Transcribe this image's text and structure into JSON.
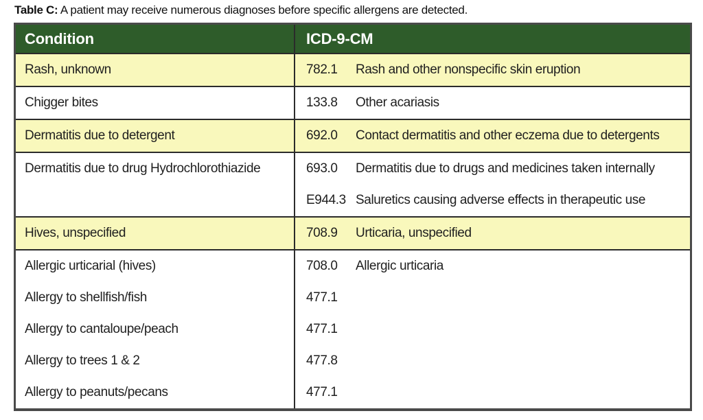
{
  "caption": {
    "label": "Table C:",
    "text": "A patient may receive numerous diagnoses before specific allergens are detected."
  },
  "table": {
    "headers": {
      "condition": "Condition",
      "code": "ICD-9-CM"
    },
    "colors": {
      "header_bg": "#2e5c2a",
      "header_text": "#ffffff",
      "row_yellow": "#f9f8bc",
      "row_white": "#ffffff",
      "border": "#2b2b2b",
      "outer_border": "#4a4a4a",
      "text": "#1f1f1f"
    },
    "rows": [
      {
        "shade": "yellow",
        "lines": [
          {
            "condition": "Rash, unknown",
            "code": "782.1",
            "desc": "Rash and other nonspecific skin eruption"
          }
        ]
      },
      {
        "shade": "white",
        "lines": [
          {
            "condition": "Chigger bites",
            "code": "133.8",
            "desc": "Other acariasis"
          }
        ]
      },
      {
        "shade": "yellow",
        "lines": [
          {
            "condition": "Dermatitis due to detergent",
            "code": "692.0",
            "desc": "Contact dermatitis and other eczema due to detergents"
          }
        ]
      },
      {
        "shade": "white",
        "lines": [
          {
            "condition": "Dermatitis due to drug Hydrochlorothiazide",
            "code": "693.0",
            "desc": "Dermatitis due to drugs and medicines taken internally"
          },
          {
            "condition": "",
            "code": "E944.3",
            "desc": "Saluretics causing adverse effects in therapeutic use"
          }
        ]
      },
      {
        "shade": "yellow",
        "lines": [
          {
            "condition": "Hives, unspecified",
            "code": "708.9",
            "desc": "Urticaria, unspecified"
          }
        ]
      },
      {
        "shade": "white",
        "lines": [
          {
            "condition": "Allergic urticarial (hives)",
            "code": "708.0",
            "desc": "Allergic urticaria"
          },
          {
            "condition": "Allergy to shellfish/fish",
            "code": "477.1",
            "desc": ""
          },
          {
            "condition": "Allergy to cantaloupe/peach",
            "code": "477.1",
            "desc": ""
          },
          {
            "condition": "Allergy to trees 1 & 2",
            "code": "477.8",
            "desc": ""
          },
          {
            "condition": "Allergy to peanuts/pecans",
            "code": "477.1",
            "desc": ""
          }
        ]
      }
    ]
  }
}
